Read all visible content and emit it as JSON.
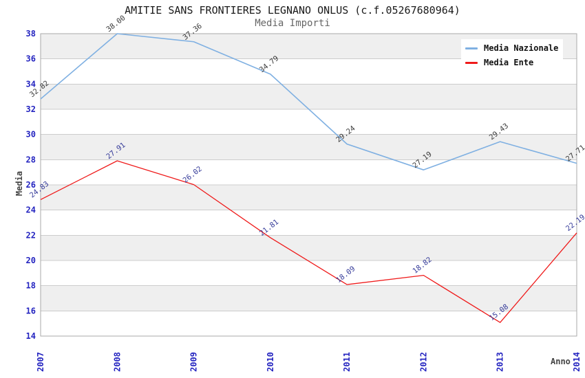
{
  "header": {
    "title": "AMITIE SANS FRONTIERES LEGNANO ONLUS (c.f.05267680964)",
    "subtitle": "Media Importi"
  },
  "chart_data": {
    "type": "line",
    "title": "AMITIE SANS FRONTIERES LEGNANO ONLUS (c.f.05267680964)",
    "subtitle": "Media Importi",
    "xlabel": "Anno",
    "ylabel": "Media",
    "x": [
      "2007",
      "2008",
      "2009",
      "2010",
      "2011",
      "2012",
      "2013",
      "2014"
    ],
    "series": [
      {
        "name": "Media Nazionale",
        "color": "#7fb0e2",
        "label_color": "#3a3a3a",
        "values": [
          32.82,
          38.0,
          37.36,
          34.79,
          29.24,
          27.19,
          29.43,
          27.71
        ],
        "point_labels": [
          "32.82",
          "38.00",
          "37.36",
          "34.79",
          "29.24",
          "27.19",
          "29.43",
          "27.71"
        ]
      },
      {
        "name": "Media Ente",
        "color": "#ef1a1a",
        "label_color": "#343a99",
        "values": [
          24.83,
          27.91,
          26.02,
          21.81,
          18.09,
          18.82,
          15.08,
          22.19
        ],
        "point_labels": [
          "24.83",
          "27.91",
          "26.02",
          "21.81",
          "18.09",
          "18.82",
          "15.08",
          "22.19"
        ]
      }
    ],
    "ylim": [
      14,
      38
    ],
    "ytick_step": 2,
    "ytick_labels": [
      "14",
      "16",
      "18",
      "20",
      "22",
      "24",
      "26",
      "28",
      "30",
      "32",
      "34",
      "36",
      "38"
    ],
    "grid": true,
    "legend_position": "top-right",
    "colors": {
      "band": "#efefef",
      "gridline": "#cccccc",
      "plot_border": "#aaaaaa",
      "tick_label": "#2424c0",
      "title": "#1a1a1a",
      "subtitle": "#666666",
      "axis_title": "#444444"
    }
  }
}
